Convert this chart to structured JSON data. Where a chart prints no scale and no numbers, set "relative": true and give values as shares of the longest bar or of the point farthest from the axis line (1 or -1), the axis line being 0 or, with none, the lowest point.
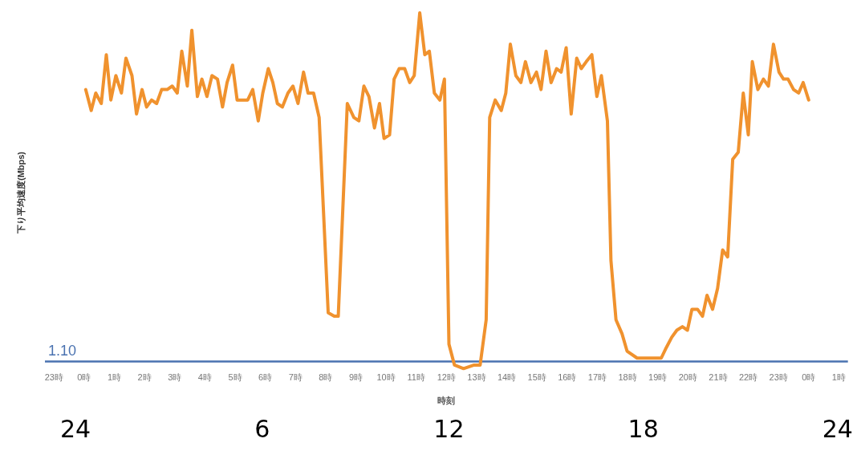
{
  "chart_data": {
    "type": "line",
    "relative": true,
    "xlabel": "時刻",
    "ylabel": "下り平均速度(Mbps)",
    "xlim": [
      "--03-14T22:42",
      "--03-16T01:18"
    ],
    "xticks": [
      {
        "value": "--03-14T23:00",
        "label": "23時"
      },
      {
        "value": "--03-15T00:00",
        "label": "0時"
      },
      {
        "value": "--03-15T01:00",
        "label": "1時"
      },
      {
        "value": "--03-15T02:00",
        "label": "2時"
      },
      {
        "value": "--03-15T03:00",
        "label": "3時"
      },
      {
        "value": "--03-15T04:00",
        "label": "4時"
      },
      {
        "value": "--03-15T05:00",
        "label": "5時"
      },
      {
        "value": "--03-15T06:00",
        "label": "6時"
      },
      {
        "value": "--03-15T07:00",
        "label": "7時"
      },
      {
        "value": "--03-15T08:00",
        "label": "8時"
      },
      {
        "value": "--03-15T09:00",
        "label": "9時"
      },
      {
        "value": "--03-15T10:00",
        "label": "10時"
      },
      {
        "value": "--03-15T11:00",
        "label": "11時"
      },
      {
        "value": "--03-15T12:00",
        "label": "12時"
      },
      {
        "value": "--03-15T13:00",
        "label": "13時"
      },
      {
        "value": "--03-15T14:00",
        "label": "14時"
      },
      {
        "value": "--03-15T15:00",
        "label": "15時"
      },
      {
        "value": "--03-15T16:00",
        "label": "16時"
      },
      {
        "value": "--03-15T17:00",
        "label": "17時"
      },
      {
        "value": "--03-15T18:00",
        "label": "18時"
      },
      {
        "value": "--03-15T19:00",
        "label": "19時"
      },
      {
        "value": "--03-15T20:00",
        "label": "20時"
      },
      {
        "value": "--03-15T21:00",
        "label": "21時"
      },
      {
        "value": "--03-15T22:00",
        "label": "22時"
      },
      {
        "value": "--03-15T23:00",
        "label": "23時"
      },
      {
        "value": "--03-16T00:00",
        "label": "0時"
      },
      {
        "value": "--03-16T01:00",
        "label": "1時"
      }
    ],
    "series": [
      {
        "color": "#f0922e",
        "x": [
          "--03-15T00:03",
          "--03-15T00:14",
          "--03-15T00:23",
          "--03-15T00:34",
          "--03-15T00:44",
          "--03-15T00:53",
          "--03-15T01:03",
          "--03-15T01:14",
          "--03-15T01:23",
          "--03-15T01:35",
          "--03-15T01:44",
          "--03-15T01:55",
          "--03-15T02:04",
          "--03-15T02:14",
          "--03-15T02:24",
          "--03-15T02:34",
          "--03-15T02:45",
          "--03-15T02:55",
          "--03-15T03:05",
          "--03-15T03:14",
          "--03-15T03:25",
          "--03-15T03:34",
          "--03-15T03:45",
          "--03-15T03:54",
          "--03-15T04:04",
          "--03-15T04:14",
          "--03-15T04:25",
          "--03-15T04:35",
          "--03-15T04:44",
          "--03-15T04:55",
          "--03-15T05:04",
          "--03-15T05:25",
          "--03-15T05:35",
          "--03-15T05:46",
          "--03-15T05:55",
          "--03-15T06:06",
          "--03-15T06:15",
          "--03-15T06:24",
          "--03-15T06:34",
          "--03-15T06:45",
          "--03-15T06:55",
          "--03-15T07:05",
          "--03-15T07:16",
          "--03-15T07:25",
          "--03-15T07:36",
          "--03-15T07:47",
          "--03-15T08:05",
          "--03-15T08:17",
          "--03-15T08:25",
          "--03-15T08:43",
          "--03-15T08:56",
          "--03-15T09:06",
          "--03-15T09:16",
          "--03-15T09:26",
          "--03-15T09:37",
          "--03-15T09:47",
          "--03-15T09:56",
          "--03-15T10:07",
          "--03-15T10:16",
          "--03-15T10:26",
          "--03-15T10:37",
          "--03-15T10:47",
          "--03-15T10:56",
          "--03-15T11:07",
          "--03-15T11:17",
          "--03-15T11:26",
          "--03-15T11:36",
          "--03-15T11:47",
          "--03-15T11:56",
          "--03-15T12:05",
          "--03-15T12:16",
          "--03-15T12:34",
          "--03-15T12:55",
          "--03-15T13:07",
          "--03-15T13:19",
          "--03-15T13:26",
          "--03-15T13:37",
          "--03-15T13:49",
          "--03-15T13:58",
          "--03-15T14:07",
          "--03-15T14:18",
          "--03-15T14:28",
          "--03-15T14:37",
          "--03-15T14:48",
          "--03-15T14:59",
          "--03-15T15:08",
          "--03-15T15:18",
          "--03-15T15:28",
          "--03-15T15:39",
          "--03-15T15:48",
          "--03-15T15:58",
          "--03-15T16:08",
          "--03-15T16:19",
          "--03-15T16:28",
          "--03-15T16:38",
          "--03-15T16:49",
          "--03-15T16:59",
          "--03-15T17:08",
          "--03-15T17:20",
          "--03-15T17:27",
          "--03-15T17:37",
          "--03-15T17:49",
          "--03-15T17:59",
          "--03-15T18:19",
          "--03-15T18:41",
          "--03-15T19:07",
          "--03-15T19:17",
          "--03-15T19:28",
          "--03-15T19:38",
          "--03-15T19:49",
          "--03-15T19:59",
          "--03-15T20:08",
          "--03-15T20:19",
          "--03-15T20:29",
          "--03-15T20:38",
          "--03-15T20:49",
          "--03-15T20:59",
          "--03-15T21:09",
          "--03-15T21:19",
          "--03-15T21:29",
          "--03-15T21:40",
          "--03-15T21:50",
          "--03-15T22:00",
          "--03-15T22:08",
          "--03-15T22:19",
          "--03-15T22:30",
          "--03-15T22:40",
          "--03-15T22:50",
          "--03-15T23:01",
          "--03-15T23:10",
          "--03-15T23:19",
          "--03-15T23:30",
          "--03-15T23:40",
          "--03-15T23:49",
          "--03-16T00:00"
        ],
        "values": [
          0.78,
          0.72,
          0.77,
          0.74,
          0.88,
          0.75,
          0.82,
          0.77,
          0.87,
          0.82,
          0.71,
          0.78,
          0.73,
          0.75,
          0.74,
          0.78,
          0.78,
          0.79,
          0.77,
          0.89,
          0.79,
          0.95,
          0.76,
          0.81,
          0.76,
          0.82,
          0.81,
          0.73,
          0.8,
          0.85,
          0.75,
          0.75,
          0.78,
          0.69,
          0.77,
          0.84,
          0.8,
          0.74,
          0.73,
          0.77,
          0.79,
          0.74,
          0.83,
          0.77,
          0.77,
          0.7,
          0.14,
          0.13,
          0.13,
          0.74,
          0.7,
          0.69,
          0.79,
          0.76,
          0.67,
          0.74,
          0.64,
          0.65,
          0.81,
          0.84,
          0.84,
          0.8,
          0.82,
          1,
          0.88,
          0.89,
          0.77,
          0.75,
          0.81,
          0.05,
          -0.01,
          -0.02,
          -0.01,
          -0.01,
          0.12,
          0.7,
          0.75,
          0.72,
          0.77,
          0.91,
          0.82,
          0.8,
          0.86,
          0.8,
          0.83,
          0.78,
          0.89,
          0.8,
          0.84,
          0.83,
          0.9,
          0.71,
          0.87,
          0.84,
          0.86,
          0.88,
          0.76,
          0.82,
          0.69,
          0.29,
          0.12,
          0.08,
          0.03,
          0.01,
          0.01,
          0.01,
          0.04,
          0.07,
          0.09,
          0.1,
          0.09,
          0.15,
          0.15,
          0.13,
          0.19,
          0.15,
          0.21,
          0.32,
          0.3,
          0.58,
          0.6,
          0.77,
          0.65,
          0.86,
          0.78,
          0.81,
          0.79,
          0.91,
          0.83,
          0.81,
          0.81,
          0.78,
          0.77,
          0.8,
          0.75
        ]
      }
    ],
    "annotations": [
      "1.10",
      "24",
      "6",
      "12",
      "18",
      "24"
    ]
  }
}
